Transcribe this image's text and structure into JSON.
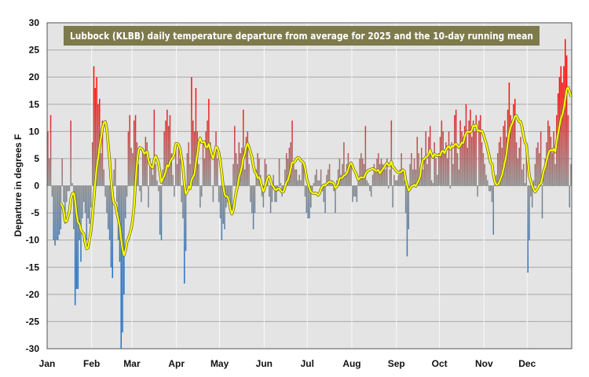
{
  "chart_data": {
    "type": "bar",
    "title": "Lubbock (KLBB) daily temperature departure from average for 2025 and the 10-day running mean",
    "xlabel": "",
    "ylabel": "Departure in degrees F",
    "ylim": [
      -30,
      30
    ],
    "yticks": [
      -30,
      -25,
      -20,
      -15,
      -10,
      -5,
      0,
      5,
      10,
      15,
      20,
      25,
      30
    ],
    "month_labels": [
      "Jan",
      "Feb",
      "Mar",
      "Apr",
      "May",
      "Jun",
      "Jul",
      "Aug",
      "Sep",
      "Oct",
      "Nov",
      "Dec"
    ],
    "grid": true,
    "running_mean_window": 10,
    "colors": {
      "positive": "#ff0000",
      "negative": "#1f6fc0",
      "zero_blend": "#808080",
      "running_mean": "#ffff00",
      "title_box": "#7d7a4c",
      "plot_bg": "#e4e4e4"
    },
    "monthly_values": {
      "Jan": [
        10,
        5,
        13,
        -2,
        -10,
        -11,
        -10,
        -10,
        -9,
        -8,
        5,
        -3,
        -7,
        -3,
        -1,
        -1,
        12,
        0.5,
        -8,
        -22,
        -19,
        -19,
        -10,
        -14,
        -6,
        -3,
        -5,
        -10,
        -6,
        -7,
        -4
      ],
      "Feb": [
        8,
        22,
        18,
        20,
        15,
        16,
        6,
        12,
        3,
        -2,
        -5,
        -8,
        -10,
        -15,
        -17,
        3,
        5,
        -3,
        -10,
        -14,
        -30,
        -27,
        -20,
        -6,
        -2,
        10,
        13,
        7
      ],
      "Mar": [
        6,
        12,
        13,
        8,
        4,
        -1,
        -3,
        7,
        6,
        9,
        8,
        -4,
        5,
        4,
        2,
        14,
        4,
        1,
        -1,
        -9,
        -10,
        3,
        10,
        12,
        14,
        11,
        13,
        6,
        2,
        -2,
        8
      ],
      "Apr": [
        4,
        7,
        5,
        -3,
        -6,
        -18,
        -12,
        6,
        8,
        4,
        20,
        12,
        10,
        18,
        10,
        4,
        -4,
        -2,
        8,
        5,
        10,
        12,
        16,
        8,
        0,
        -3,
        6,
        10,
        5,
        -3
      ],
      "May": [
        -6,
        -10,
        -7,
        -8,
        -4,
        -3,
        -2,
        -4,
        -5,
        4,
        11,
        6,
        4,
        8,
        6,
        7,
        14,
        3,
        9,
        10,
        4,
        -3,
        -5,
        -8,
        -5,
        3,
        6,
        5,
        2,
        -2,
        -4
      ],
      "Jun": [
        5,
        4,
        1,
        -2,
        -5,
        -3,
        2,
        -3,
        -3,
        -1,
        5,
        0.5,
        -2,
        -1,
        3,
        6,
        5,
        7,
        8,
        12,
        4,
        3,
        3,
        1,
        2,
        1,
        4,
        4,
        -2,
        -5
      ],
      "Jul": [
        -6,
        -6,
        -4,
        -1,
        0.5,
        2,
        3,
        1,
        1,
        3,
        -1,
        -3,
        -5,
        2,
        3,
        4,
        1,
        1,
        -1,
        -5,
        1,
        3,
        5,
        2,
        4,
        8,
        2,
        4,
        6,
        4,
        4
      ],
      "Aug": [
        -3,
        -2,
        -2,
        -3,
        1,
        5,
        6,
        5,
        4,
        11,
        1,
        0.5,
        -1,
        -2,
        2,
        4,
        3,
        5,
        6,
        4,
        5,
        4,
        3,
        3,
        5,
        -0.5,
        3,
        12,
        -4,
        2,
        1
      ],
      "Sep": [
        1,
        2,
        3,
        6,
        3,
        1,
        -5,
        -13,
        -8,
        4,
        6,
        3,
        5,
        3,
        9,
        6,
        2,
        7,
        3,
        5,
        10,
        4,
        9,
        11,
        1,
        0.5,
        8,
        5,
        2,
        6
      ],
      "Oct": [
        9,
        12,
        10,
        6,
        8,
        5,
        10,
        -0.5,
        8,
        4,
        13,
        14,
        6,
        3,
        12,
        10,
        9,
        11,
        15,
        7,
        12,
        14,
        9,
        12,
        10,
        13,
        -2,
        12,
        13,
        8,
        6
      ],
      "Nov": [
        4,
        2,
        1,
        -1,
        -1,
        -3,
        -9,
        1,
        2,
        6,
        8,
        9,
        7,
        11,
        12,
        9,
        14,
        19,
        13,
        12,
        15,
        16,
        8,
        5,
        7,
        9,
        3,
        4,
        0.5,
        8
      ],
      "Dec": [
        -16,
        -10,
        -2,
        -4,
        1,
        4,
        7,
        8,
        6,
        10,
        -6,
        3,
        5,
        8,
        12,
        11,
        9,
        6,
        10,
        4,
        13,
        17,
        20,
        22,
        19,
        22,
        27,
        24,
        13,
        -4,
        4
      ]
    }
  }
}
